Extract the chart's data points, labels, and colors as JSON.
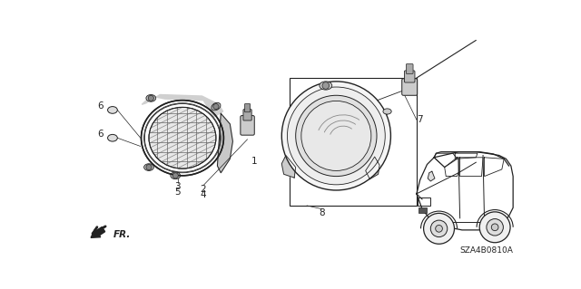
{
  "bg_color": "#ffffff",
  "line_color": "#222222",
  "gray1": "#cccccc",
  "gray2": "#e0e0e0",
  "gray3": "#aaaaaa",
  "diagram_code": "SZA4B0810A"
}
